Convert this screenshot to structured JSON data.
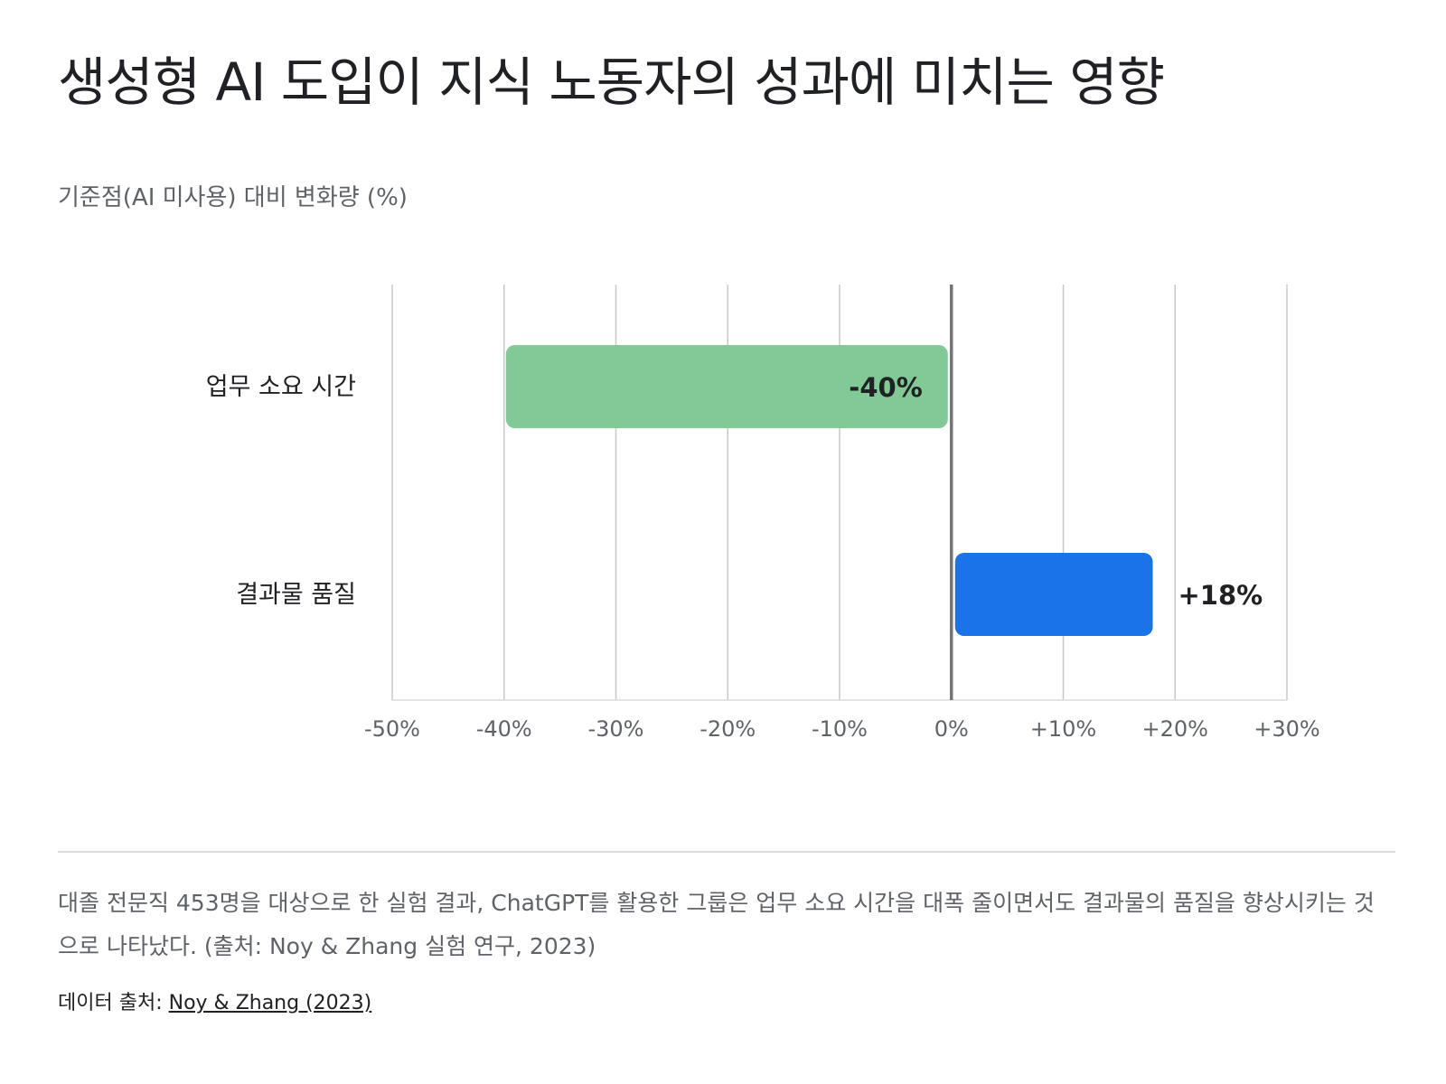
{
  "title": "생성형 AI 도입이 지식 노동자의 성과에 미치는 영향",
  "subtitle": "기준점(AI 미사용) 대비 변화량 (%)",
  "chart_data": {
    "type": "bar",
    "orientation": "horizontal",
    "categories": [
      "업무 소요 시간",
      "결과물 품질"
    ],
    "values": [
      -40,
      18
    ],
    "value_labels": [
      "-40%",
      "+18%"
    ],
    "bar_colors": [
      "#81c995",
      "#1a73e8"
    ],
    "xlim": [
      -50,
      30
    ],
    "x_ticks": [
      -50,
      -40,
      -30,
      -20,
      -10,
      0,
      10,
      20,
      30
    ],
    "x_tick_labels": [
      "-50%",
      "-40%",
      "-30%",
      "-20%",
      "-10%",
      "0%",
      "+10%",
      "+20%",
      "+30%"
    ],
    "grid": true,
    "legend": "none"
  },
  "summary": "대졸 전문직 453명을 대상으로 한 실험 결과, ChatGPT를 활용한 그룹은 업무 소요 시간을 대폭 줄이면서도 결과물의 품질을 향상시키는 것으로 나타났다. (출처: Noy & Zhang 실험 연구, 2023)",
  "source": {
    "prefix": "데이터 출처: ",
    "link_text": "Noy & Zhang (2023)"
  }
}
